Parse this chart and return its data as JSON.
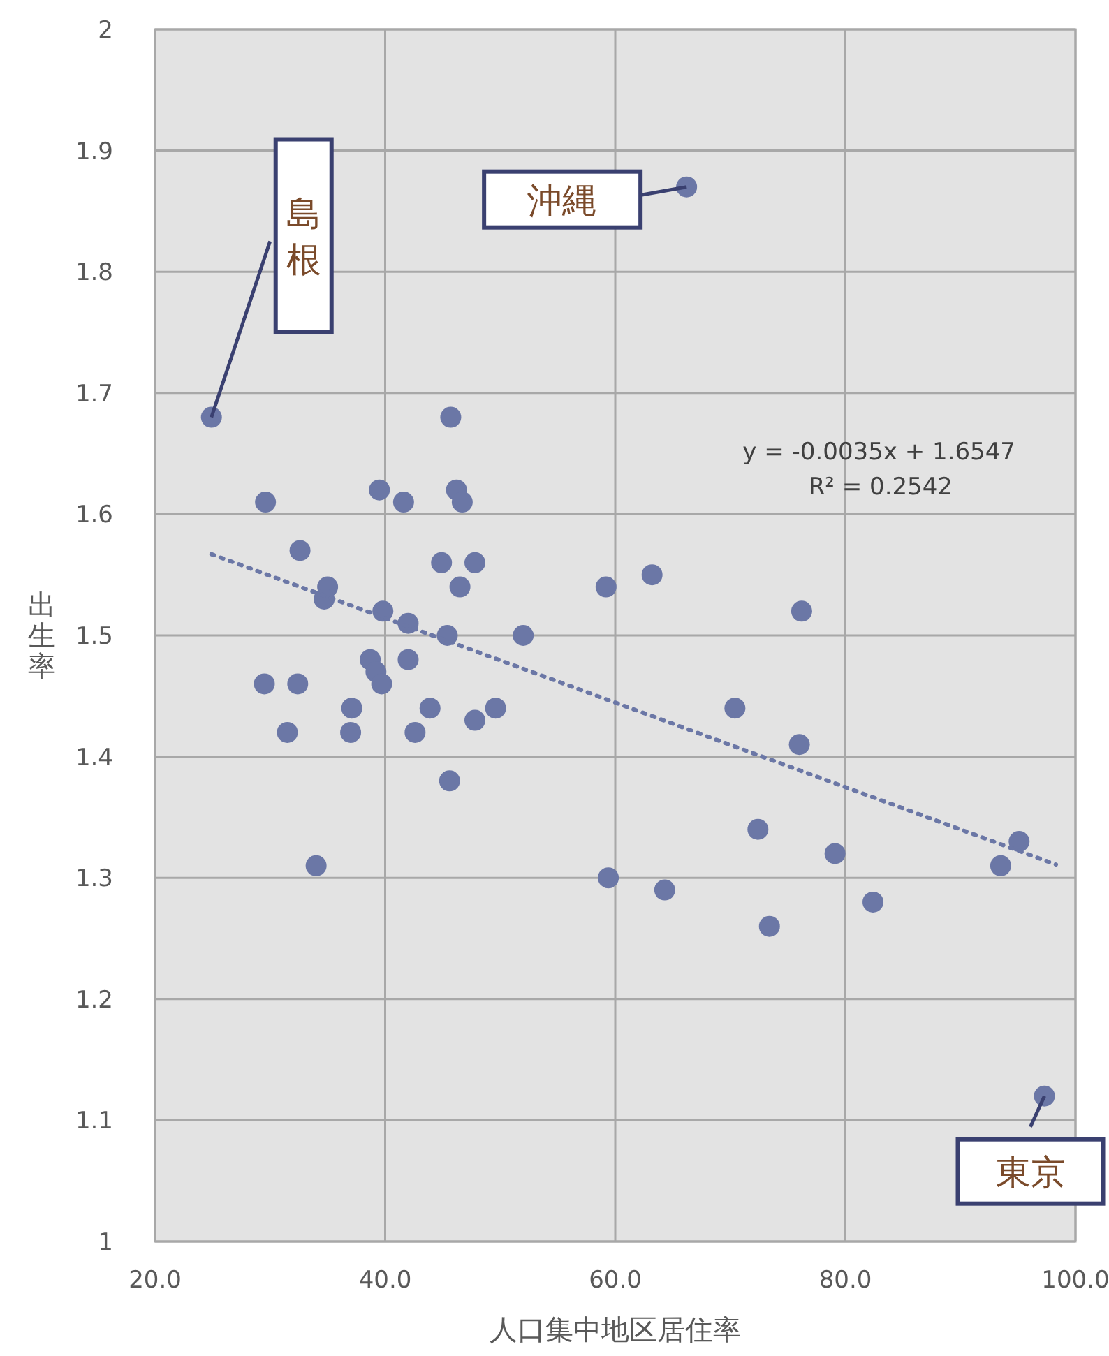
{
  "chart_data": {
    "type": "scatter",
    "xlabel": "人口集中地区居住率",
    "ylabel": "出生率",
    "xlim": [
      20,
      100
    ],
    "xticks": [
      {
        "value": 20,
        "label": "20.0"
      },
      {
        "value": 40,
        "label": "40.0"
      },
      {
        "value": 60,
        "label": "60.0"
      },
      {
        "value": 80,
        "label": "80.0"
      },
      {
        "value": 100,
        "label": "100.0"
      }
    ],
    "ylim": [
      1,
      2
    ],
    "yticks": [
      1,
      1.1,
      1.2,
      1.3,
      1.4,
      1.5,
      1.6,
      1.7,
      1.8,
      1.9,
      2
    ],
    "grid": true,
    "marker": "circle",
    "series": [
      {
        "color": "#6b77a6",
        "x": [
          24.9,
          66.2,
          97.3,
          29.6,
          39.5,
          41.6,
          45.7,
          46.2,
          46.7,
          32.6,
          35.0,
          34.7,
          44.9,
          47.8,
          46.5,
          39.8,
          42.0,
          45.4,
          52.0,
          59.2,
          63.2,
          76.2,
          29.5,
          32.4,
          38.7,
          39.2,
          39.7,
          42.0,
          37.1,
          43.9,
          49.6,
          47.8,
          31.5,
          37.0,
          42.6,
          45.6,
          34.0,
          70.4,
          76.0,
          72.4,
          79.1,
          82.4,
          73.4,
          64.3,
          59.4,
          93.5,
          95.1
        ],
        "values": [
          1.68,
          1.87,
          1.12,
          1.61,
          1.62,
          1.61,
          1.68,
          1.62,
          1.61,
          1.57,
          1.54,
          1.53,
          1.56,
          1.56,
          1.54,
          1.52,
          1.51,
          1.5,
          1.5,
          1.54,
          1.55,
          1.52,
          1.46,
          1.46,
          1.48,
          1.47,
          1.46,
          1.48,
          1.44,
          1.44,
          1.44,
          1.43,
          1.42,
          1.42,
          1.42,
          1.38,
          1.31,
          1.44,
          1.41,
          1.34,
          1.32,
          1.28,
          1.26,
          1.29,
          1.3,
          1.31,
          1.33
        ]
      },
      {
        "type": "line",
        "color": "#6b77a6",
        "line_style": "dotted",
        "marker": "none",
        "x": [
          24.9,
          98.3
        ],
        "values": [
          1.567,
          1.311
        ]
      }
    ],
    "annotations": [
      {
        "text": "島根",
        "x": 24.9,
        "y": 1.68
      },
      {
        "text": "沖縄",
        "x": 66.2,
        "y": 1.87
      },
      {
        "text": "東京",
        "x": 97.3,
        "y": 1.12
      },
      "y = -0.0035x + 1.6547",
      "R² = 0.2542"
    ]
  }
}
